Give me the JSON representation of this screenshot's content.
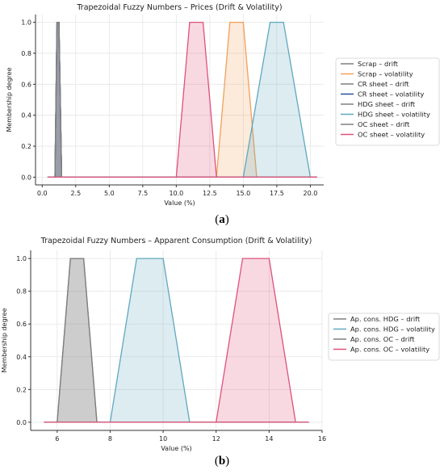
{
  "captions": {
    "a_label": "a",
    "b_label": "b"
  },
  "chart_data": [
    {
      "type": "area",
      "title": "Trapezoidal Fuzzy Numbers – Prices (Drift & Volatility)",
      "xlabel": "Value (%)",
      "ylabel": "Membership degree",
      "xlim": [
        -0.5,
        21.0
      ],
      "ylim": [
        -0.05,
        1.05
      ],
      "xticks": [
        0.0,
        2.5,
        5.0,
        7.5,
        10.0,
        12.5,
        15.0,
        17.5,
        20.0
      ],
      "xtick_labels": [
        "0.0",
        "2.5",
        "5.0",
        "7.5",
        "10.0",
        "12.5",
        "15.0",
        "17.5",
        "20.0"
      ],
      "yticks": [
        0.0,
        0.2,
        0.4,
        0.6,
        0.8,
        1.0
      ],
      "ytick_labels": [
        "0.0",
        "0.2",
        "0.4",
        "0.6",
        "0.8",
        "1.0"
      ],
      "grid": true,
      "legend_position": "right",
      "baseline_range": [
        0.4,
        20.5
      ],
      "series": [
        {
          "name": "Scrap – drift",
          "color": "#7f7f7f",
          "trapezoid": [
            0.95,
            1.1,
            1.25,
            1.45
          ]
        },
        {
          "name": "Scrap – volatility",
          "color": "#f0a05a",
          "trapezoid": [
            13.0,
            14.0,
            15.0,
            16.0
          ]
        },
        {
          "name": "CR sheet – drift",
          "color": "#7f7f7f",
          "trapezoid": [
            0.95,
            1.1,
            1.25,
            1.45
          ]
        },
        {
          "name": "CR sheet – volatility",
          "color": "#2c4f9e",
          "trapezoid": [
            0.95,
            1.1,
            1.25,
            1.45
          ]
        },
        {
          "name": "HDG sheet – drift",
          "color": "#7f7f7f",
          "trapezoid": [
            0.95,
            1.1,
            1.25,
            1.45
          ]
        },
        {
          "name": "HDG sheet – volatility",
          "color": "#5fa8bf",
          "trapezoid": [
            15.0,
            17.0,
            18.0,
            20.0
          ]
        },
        {
          "name": "OC sheet – drift",
          "color": "#7f7f7f",
          "trapezoid": [
            0.95,
            1.1,
            1.25,
            1.45
          ]
        },
        {
          "name": "OC sheet – volatility",
          "color": "#e0507a",
          "trapezoid": [
            10.0,
            11.0,
            12.0,
            13.0
          ]
        }
      ]
    },
    {
      "type": "area",
      "title": "Trapezoidal Fuzzy Numbers – Apparent Consumption (Drift & Volatility)",
      "xlabel": "Value (%)",
      "ylabel": "Membership degree",
      "xlim": [
        5.0,
        16.0
      ],
      "ylim": [
        -0.05,
        1.05
      ],
      "xticks": [
        6,
        8,
        10,
        12,
        14,
        16
      ],
      "xtick_labels": [
        "6",
        "8",
        "10",
        "12",
        "14",
        "16"
      ],
      "yticks": [
        0.0,
        0.2,
        0.4,
        0.6,
        0.8,
        1.0
      ],
      "ytick_labels": [
        "0.0",
        "0.2",
        "0.4",
        "0.6",
        "0.8",
        "1.0"
      ],
      "grid": true,
      "legend_position": "right",
      "baseline_range": [
        5.5,
        15.5
      ],
      "series": [
        {
          "name": "Ap. cons. HDG – drift",
          "color": "#7f7f7f",
          "trapezoid": [
            6.0,
            6.5,
            7.0,
            7.5
          ]
        },
        {
          "name": "Ap. cons. HDG – volatility",
          "color": "#5fa8bf",
          "trapezoid": [
            8.0,
            9.0,
            10.0,
            11.0
          ]
        },
        {
          "name": "Ap. cons. OC – drift",
          "color": "#7f7f7f",
          "trapezoid": [
            6.0,
            6.5,
            7.0,
            7.5
          ]
        },
        {
          "name": "Ap. cons. OC – volatility",
          "color": "#e0507a",
          "trapezoid": [
            12.0,
            13.0,
            14.0,
            15.0
          ]
        }
      ]
    }
  ]
}
